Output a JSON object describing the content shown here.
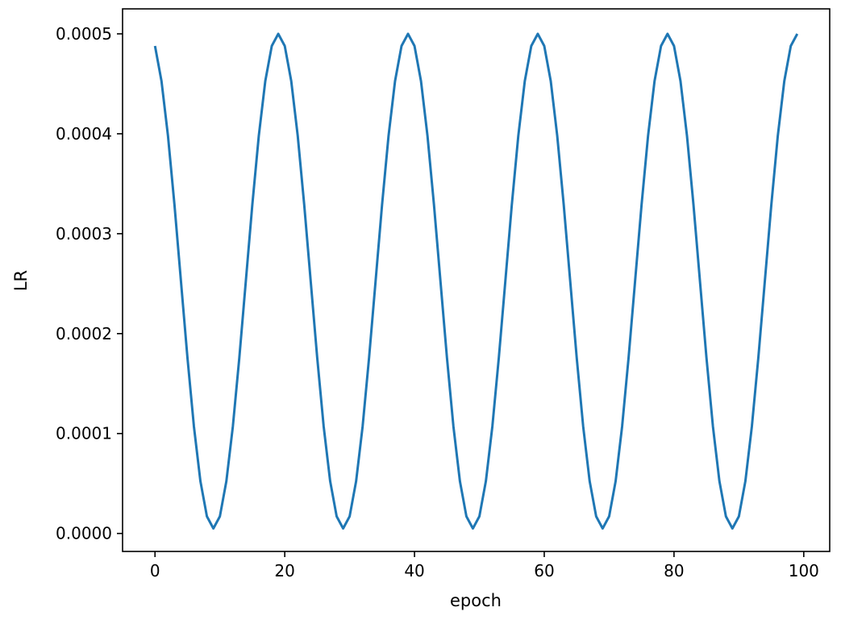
{
  "chart_data": {
    "type": "line",
    "title": "",
    "xlabel": "epoch",
    "ylabel": "LR",
    "xlim": [
      -5,
      104
    ],
    "ylim": [
      -1.8e-05,
      0.000525
    ],
    "xticks": [
      0,
      20,
      40,
      60,
      80,
      100
    ],
    "xtick_labels": [
      "0",
      "20",
      "40",
      "60",
      "80",
      "100"
    ],
    "yticks": [
      0.0,
      0.0001,
      0.0002,
      0.0003,
      0.0004,
      0.0005
    ],
    "ytick_labels": [
      "0.0000",
      "0.0001",
      "0.0002",
      "0.0003",
      "0.0004",
      "0.0005"
    ],
    "grid": false,
    "line_color": "#1f77b4",
    "schedule": {
      "kind": "cosine annealing with warm restarts",
      "eta_max": 0.0005,
      "eta_min": 5e-06,
      "half_period_epochs": 10,
      "num_epochs": 100
    }
  }
}
